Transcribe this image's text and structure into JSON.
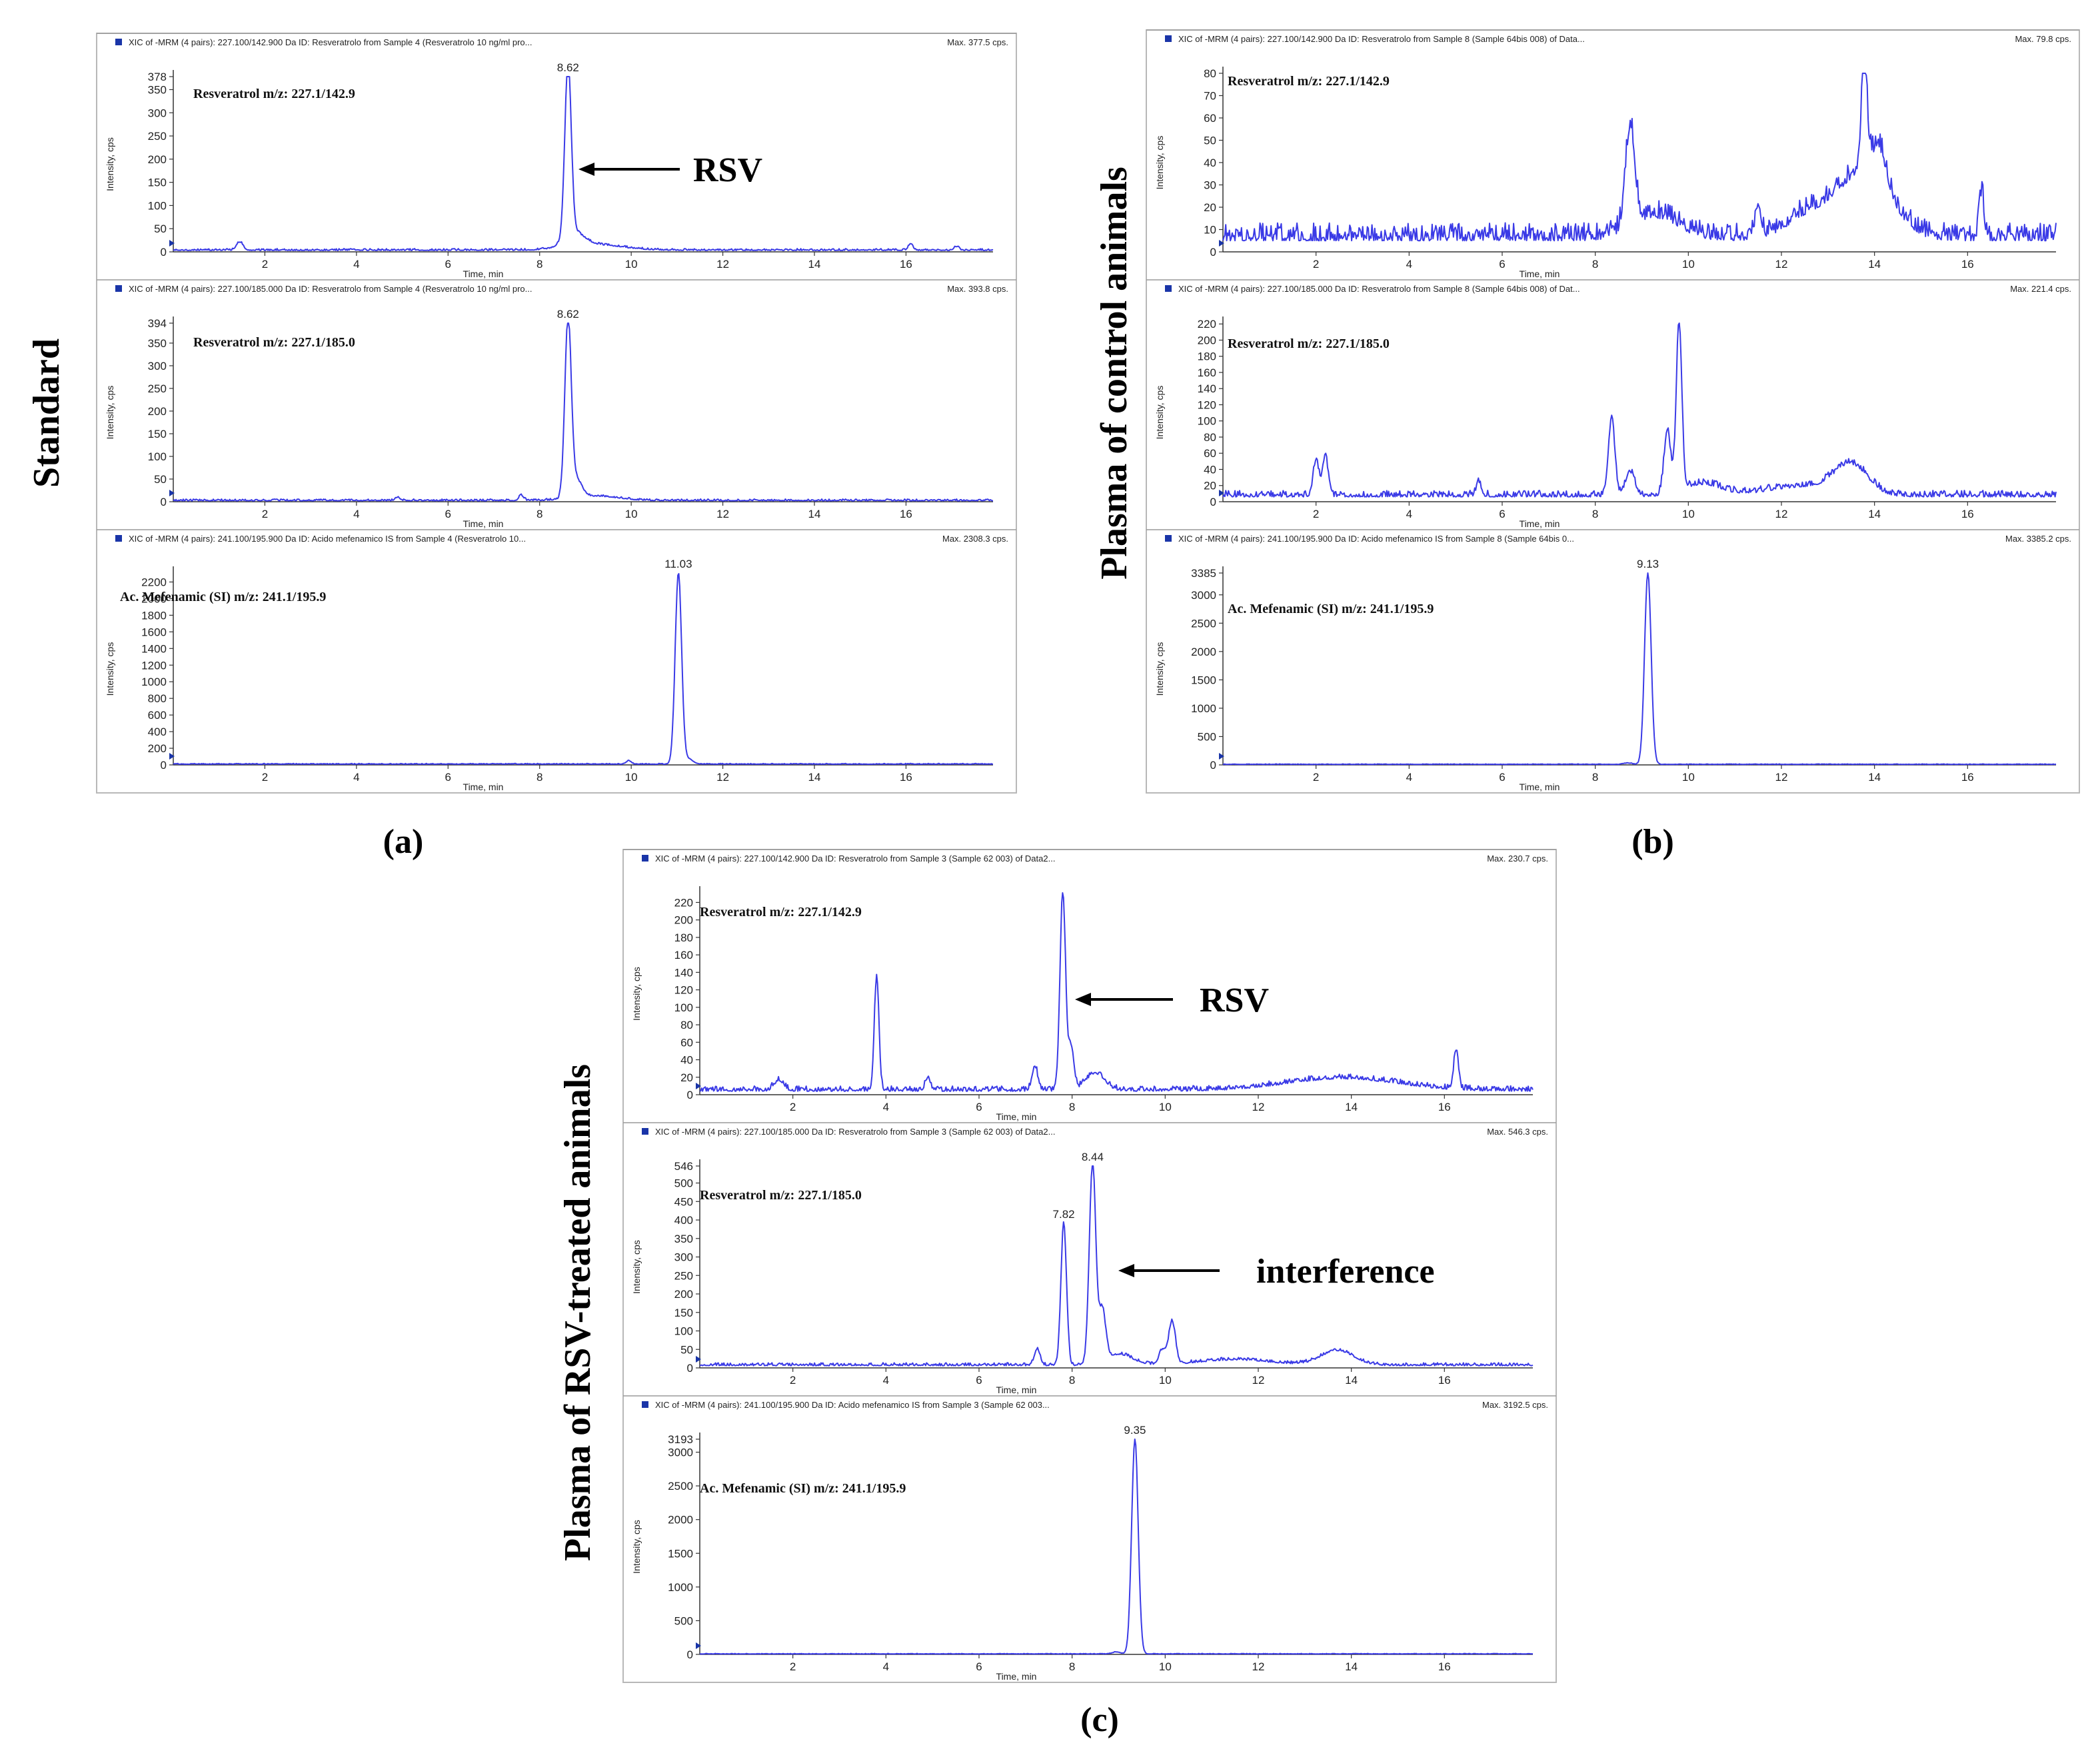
{
  "figure_side_labels": {
    "a": "Standard",
    "b": "Plasma of control animals",
    "c": "Plasma of RSV-treated animals"
  },
  "panel_letters": {
    "a": "(a)",
    "b": "(b)",
    "c": "(c)"
  },
  "annotations": {
    "rsv": "RSV",
    "interference": "interference"
  },
  "colors": {
    "trace": "#3a3ae6",
    "frame": "#9a9a9a",
    "marker": "#1a35a8"
  },
  "chart_data": [
    {
      "id": "a1",
      "type": "line",
      "panel": "a",
      "header": "XIC of -MRM (4 pairs): 227.100/142.900 Da ID: Resveratrolo from Sample 4 (Resveratrolo 10 ng/ml pro...",
      "max_label": "Max. 377.5 cps.",
      "compound": "Resveratrol   m/z: 227.1/142.9",
      "xlabel": "Time, min",
      "ylabel": "Intensity, cps",
      "xlim": [
        0,
        17.9
      ],
      "ylim": [
        0,
        378
      ],
      "xticks": [
        "2",
        "4",
        "6",
        "8",
        "10",
        "12",
        "14",
        "16"
      ],
      "yticks": [
        "0",
        "50",
        "100",
        "150",
        "200",
        "250",
        "300",
        "350",
        "378"
      ],
      "baseline": 3,
      "noise": 4,
      "peaks": [
        [
          8.62,
          375,
          0.07
        ],
        [
          8.75,
          30,
          0.22
        ],
        [
          9.2,
          12,
          0.6
        ],
        [
          1.45,
          18,
          0.07
        ],
        [
          16.1,
          14,
          0.05
        ],
        [
          17.1,
          8,
          0.05
        ]
      ],
      "peak_labels": [
        {
          "x": 8.62,
          "text": "8.62"
        }
      ]
    },
    {
      "id": "a2",
      "type": "line",
      "panel": "a",
      "header": "XIC of -MRM (4 pairs): 227.100/185.000 Da ID: Resveratrolo from Sample 4 (Resveratrolo 10 ng/ml pro...",
      "max_label": "Max. 393.8 cps.",
      "compound": "Resveratrol   m/z: 227.1/185.0",
      "xlabel": "Time, min",
      "ylabel": "Intensity, cps",
      "xlim": [
        0,
        17.9
      ],
      "ylim": [
        0,
        394
      ],
      "xticks": [
        "2",
        "4",
        "6",
        "8",
        "10",
        "12",
        "14",
        "16"
      ],
      "yticks": [
        "0",
        "50",
        "100",
        "150",
        "200",
        "250",
        "300",
        "350",
        "394"
      ],
      "baseline": 2,
      "noise": 4,
      "peaks": [
        [
          8.62,
          392,
          0.07
        ],
        [
          8.8,
          40,
          0.12
        ],
        [
          9.2,
          10,
          0.5
        ],
        [
          7.6,
          12,
          0.05
        ],
        [
          4.9,
          8,
          0.05
        ]
      ],
      "peak_labels": [
        {
          "x": 8.62,
          "text": "8.62"
        }
      ]
    },
    {
      "id": "a3",
      "type": "line",
      "panel": "a",
      "header": "XIC of -MRM (4 pairs): 241.100/195.900 Da ID: Acido mefenamico IS from Sample 4 (Resveratrolo 10...",
      "max_label": "Max. 2308.3 cps.",
      "compound": "Ac. Mefenamic    (SI) m/z: 241.1/195.9",
      "xlabel": "Time, min",
      "ylabel": "Intensity, cps",
      "xlim": [
        0,
        17.9
      ],
      "ylim": [
        0,
        2308
      ],
      "xticks": [
        "2",
        "4",
        "6",
        "8",
        "10",
        "12",
        "14",
        "16"
      ],
      "yticks": [
        "0",
        "200",
        "400",
        "600",
        "800",
        "1000",
        "1200",
        "1400",
        "1600",
        "1800",
        "2000",
        "2200"
      ],
      "baseline": 8,
      "noise": 10,
      "peaks": [
        [
          11.03,
          2300,
          0.07
        ],
        [
          9.95,
          40,
          0.05
        ],
        [
          11.25,
          60,
          0.1
        ]
      ],
      "peak_labels": [
        {
          "x": 11.03,
          "text": "11.03"
        }
      ]
    },
    {
      "id": "b1",
      "type": "line",
      "panel": "b",
      "header": "XIC of -MRM (4 pairs): 227.100/142.900 Da ID: Resveratrolo from Sample 8 (Sample 64bis 008) of Data...",
      "max_label": "Max. 79.8 cps.",
      "compound": "Resveratrol   m/z: 227.1/142.9",
      "xlabel": "Time, min",
      "ylabel": "Intensity, cps",
      "xlim": [
        0,
        17.9
      ],
      "ylim": [
        0,
        80
      ],
      "xticks": [
        "2",
        "4",
        "6",
        "8",
        "10",
        "12",
        "14",
        "16"
      ],
      "yticks": [
        "0",
        "10",
        "20",
        "30",
        "40",
        "50",
        "60",
        "70",
        "80"
      ],
      "baseline": 5,
      "noise": 8,
      "peaks": [
        [
          8.75,
          45,
          0.1
        ],
        [
          9.3,
          10,
          0.5
        ],
        [
          11.5,
          15,
          0.06
        ],
        [
          12.6,
          10,
          0.5
        ],
        [
          13.8,
          30,
          0.55
        ],
        [
          13.78,
          50,
          0.06
        ],
        [
          14.1,
          15,
          0.15
        ],
        [
          16.3,
          20,
          0.05
        ]
      ],
      "peak_labels": []
    },
    {
      "id": "b2",
      "type": "line",
      "panel": "b",
      "header": "XIC of -MRM (4 pairs): 227.100/185.000 Da ID: Resveratrolo from Sample 8 (Sample 64bis 008) of Dat...",
      "max_label": "Max. 221.4 cps.",
      "compound": "Resveratrol   m/z: 227.1/185.0",
      "xlabel": "Time, min",
      "ylabel": "Intensity, cps",
      "xlim": [
        0,
        17.9
      ],
      "ylim": [
        0,
        221
      ],
      "xticks": [
        "2",
        "4",
        "6",
        "8",
        "10",
        "12",
        "14",
        "16"
      ],
      "yticks": [
        "0",
        "20",
        "40",
        "60",
        "80",
        "100",
        "120",
        "140",
        "160",
        "180",
        "200",
        "220"
      ],
      "baseline": 6,
      "noise": 8,
      "peaks": [
        [
          2.0,
          45,
          0.06
        ],
        [
          2.2,
          50,
          0.06
        ],
        [
          5.5,
          18,
          0.05
        ],
        [
          8.35,
          95,
          0.07
        ],
        [
          8.75,
          30,
          0.1
        ],
        [
          9.55,
          80,
          0.07
        ],
        [
          9.8,
          212,
          0.06
        ],
        [
          10.3,
          15,
          0.4
        ],
        [
          12.5,
          12,
          0.8
        ],
        [
          13.5,
          35,
          0.35
        ]
      ],
      "peak_labels": []
    },
    {
      "id": "b3",
      "type": "line",
      "panel": "b",
      "header": "XIC of -MRM (4 pairs): 241.100/195.900 Da ID: Acido mefenamico IS from Sample 8 (Sample 64bis 0...",
      "max_label": "Max. 3385.2 cps.",
      "compound": "Ac. Mefenamic    (SI) m/z: 241.1/195.9",
      "xlabel": "Time, min",
      "ylabel": "Intensity, cps",
      "xlim": [
        0,
        17.9
      ],
      "ylim": [
        0,
        3385
      ],
      "xticks": [
        "2",
        "4",
        "6",
        "8",
        "10",
        "12",
        "14",
        "16"
      ],
      "yticks": [
        "0",
        "500",
        "1000",
        "1500",
        "2000",
        "2500",
        "3000",
        "3385"
      ],
      "baseline": 8,
      "noise": 10,
      "peaks": [
        [
          9.13,
          3380,
          0.07
        ],
        [
          8.7,
          25,
          0.08
        ]
      ],
      "peak_labels": [
        {
          "x": 9.13,
          "text": "9.13"
        }
      ]
    },
    {
      "id": "c1",
      "type": "line",
      "panel": "c",
      "header": "XIC of -MRM (4 pairs): 227.100/142.900 Da ID: Resveratrolo from Sample 3 (Sample 62  003) of Data2...",
      "max_label": "Max. 230.7 cps.",
      "compound": "Resveratrol   m/z: 227.1/142.9",
      "xlabel": "Time, min",
      "ylabel": "Intensity, cps",
      "xlim": [
        0,
        17.9
      ],
      "ylim": [
        0,
        231
      ],
      "xticks": [
        "2",
        "4",
        "6",
        "8",
        "10",
        "12",
        "14",
        "16"
      ],
      "yticks": [
        "0",
        "20",
        "40",
        "60",
        "80",
        "100",
        "120",
        "140",
        "160",
        "180",
        "200",
        "220"
      ],
      "baseline": 4,
      "noise": 6,
      "peaks": [
        [
          3.8,
          130,
          0.05
        ],
        [
          1.7,
          12,
          0.1
        ],
        [
          4.9,
          15,
          0.05
        ],
        [
          7.2,
          28,
          0.06
        ],
        [
          7.8,
          228,
          0.06
        ],
        [
          7.98,
          50,
          0.06
        ],
        [
          8.5,
          20,
          0.2
        ],
        [
          13.8,
          14,
          1.2
        ],
        [
          16.25,
          45,
          0.05
        ]
      ],
      "peak_labels": []
    },
    {
      "id": "c2",
      "type": "line",
      "panel": "c",
      "header": "XIC of -MRM (4 pairs): 227.100/185.000 Da ID: Resveratrolo from Sample 3 (Sample 62  003) of Data2...",
      "max_label": "Max. 546.3 cps.",
      "compound": "Resveratrol   m/z: 227.1/185.0",
      "xlabel": "Time, min",
      "ylabel": "Intensity, cps",
      "xlim": [
        0,
        17.9
      ],
      "ylim": [
        0,
        546
      ],
      "xticks": [
        "2",
        "4",
        "6",
        "8",
        "10",
        "12",
        "14",
        "16"
      ],
      "yticks": [
        "0",
        "50",
        "100",
        "150",
        "200",
        "250",
        "300",
        "350",
        "400",
        "450",
        "500",
        "546"
      ],
      "baseline": 6,
      "noise": 8,
      "peaks": [
        [
          7.25,
          45,
          0.06
        ],
        [
          7.82,
          385,
          0.06
        ],
        [
          8.44,
          542,
          0.07
        ],
        [
          8.65,
          140,
          0.07
        ],
        [
          9.0,
          30,
          0.3
        ],
        [
          9.95,
          40,
          0.08
        ],
        [
          10.15,
          115,
          0.07
        ],
        [
          11.5,
          15,
          0.8
        ],
        [
          13.7,
          40,
          0.35
        ]
      ],
      "peak_labels": [
        {
          "x": 7.82,
          "text": "7.82"
        },
        {
          "x": 8.44,
          "text": "8.44"
        }
      ]
    },
    {
      "id": "c3",
      "type": "line",
      "panel": "c",
      "header": "XIC of -MRM (4 pairs): 241.100/195.900 Da ID: Acido mefenamico IS from Sample 3 (Sample 62  003...",
      "max_label": "Max. 3192.5 cps.",
      "compound": "Ac. Mefenamic    (SI) m/z: 241.1/195.9",
      "xlabel": "Time, min",
      "ylabel": "Intensity, cps",
      "xlim": [
        0,
        17.9
      ],
      "ylim": [
        0,
        3193
      ],
      "xticks": [
        "2",
        "4",
        "6",
        "8",
        "10",
        "12",
        "14",
        "16"
      ],
      "yticks": [
        "0",
        "500",
        "1000",
        "1500",
        "2000",
        "2500",
        "3000",
        "3193"
      ],
      "baseline": 6,
      "noise": 8,
      "peaks": [
        [
          9.35,
          3190,
          0.07
        ],
        [
          8.95,
          30,
          0.08
        ]
      ],
      "peak_labels": [
        {
          "x": 9.35,
          "text": "9.35"
        }
      ]
    }
  ]
}
